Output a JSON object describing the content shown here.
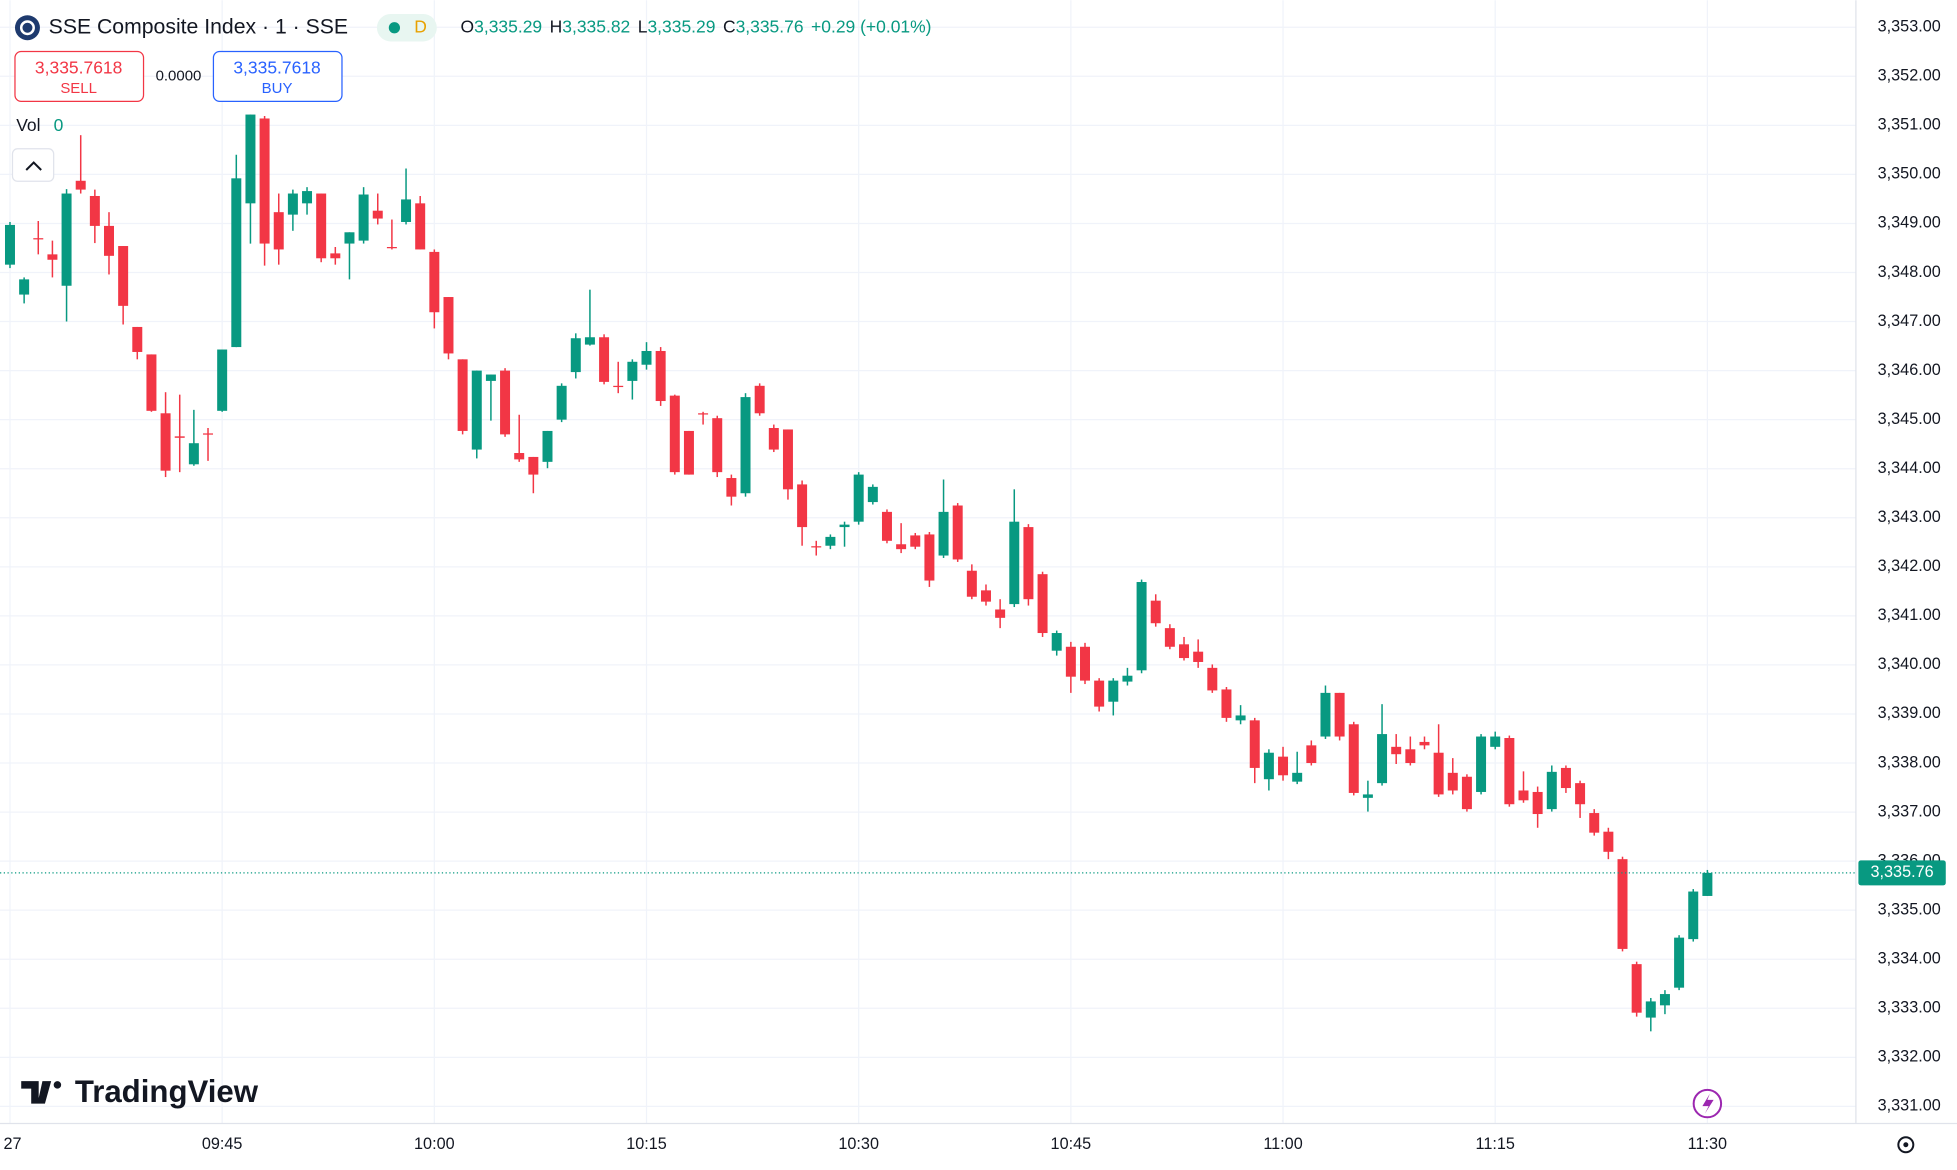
{
  "header": {
    "symbol": "SSE Composite Index · 1 · SSE",
    "badge": "D",
    "ohlc": [
      {
        "label": "O",
        "value": "3,335.29"
      },
      {
        "label": "H",
        "value": "3,335.82"
      },
      {
        "label": "L",
        "value": "3,335.29"
      },
      {
        "label": "C",
        "value": "3,335.76"
      }
    ],
    "change": "+0.29 (+0.01%)"
  },
  "trade": {
    "sell_price": "3,335.7618",
    "sell_label": "SELL",
    "spread": "0.0000",
    "buy_price": "3,335.7618",
    "buy_label": "BUY"
  },
  "volume": {
    "label": "Vol",
    "value": "0"
  },
  "brand": "TradingView",
  "chart_data": {
    "type": "candlestick",
    "up_color": "#089981",
    "down_color": "#f23645",
    "grid": true,
    "categories": [
      "27",
      null,
      null,
      null,
      null,
      null,
      null,
      null,
      null,
      null,
      null,
      null,
      null,
      null,
      null,
      "09:45",
      null,
      null,
      null,
      null,
      null,
      null,
      null,
      null,
      null,
      null,
      null,
      null,
      null,
      null,
      "10:00",
      null,
      null,
      null,
      null,
      null,
      null,
      null,
      null,
      null,
      null,
      null,
      null,
      null,
      null,
      "10:15",
      null,
      null,
      null,
      null,
      null,
      null,
      null,
      null,
      null,
      null,
      null,
      null,
      null,
      null,
      "10:30",
      null,
      null,
      null,
      null,
      null,
      null,
      null,
      null,
      null,
      null,
      null,
      null,
      null,
      null,
      "10:45",
      null,
      null,
      null,
      null,
      null,
      null,
      null,
      null,
      null,
      null,
      null,
      null,
      null,
      null,
      "11:00",
      null,
      null,
      null,
      null,
      null,
      null,
      null,
      null,
      null,
      null,
      null,
      null,
      null,
      null,
      "11:15",
      null,
      null,
      null,
      null,
      null,
      null,
      null,
      null,
      null,
      null,
      null,
      null,
      null,
      null,
      "11:30"
    ],
    "open": [
      3348.16,
      3347.55,
      3348.7,
      3348.37,
      3347.73,
      3349.87,
      3349.56,
      3348.95,
      3348.54,
      3346.89,
      3346.33,
      3345.13,
      3344.66,
      3344.09,
      3344.72,
      3345.18,
      3346.48,
      3349.41,
      3351.14,
      3349.23,
      3349.18,
      3349.41,
      3349.61,
      3348.39,
      3348.59,
      3348.65,
      3349.26,
      3348.52,
      3349.03,
      3349.41,
      3348.42,
      3347.5,
      3346.23,
      3344.39,
      3345.79,
      3346.0,
      3344.32,
      3344.24,
      3344.14,
      3345.0,
      3345.97,
      3346.53,
      3346.68,
      3345.69,
      3345.79,
      3346.12,
      3346.4,
      3345.49,
      3344.77,
      3345.13,
      3345.03,
      3343.81,
      3343.5,
      3345.69,
      3344.83,
      3344.8,
      3343.68,
      3342.42,
      3342.43,
      3342.81,
      3342.92,
      3343.32,
      3343.12,
      3342.46,
      3342.64,
      3342.66,
      3342.23,
      3343.25,
      3341.92,
      3341.52,
      3341.13,
      3341.24,
      3342.81,
      3341.85,
      3340.29,
      3340.37,
      3340.37,
      3339.68,
      3339.25,
      3339.66,
      3339.89,
      3341.31,
      3340.75,
      3340.42,
      3340.27,
      3339.94,
      3339.5,
      3338.87,
      3338.87,
      3337.67,
      3338.13,
      3337.62,
      3338.36,
      3338.54,
      3339.43,
      3338.79,
      3337.29,
      3337.59,
      3338.33,
      3338.28,
      3338.43,
      3338.21,
      3337.8,
      3337.72,
      3337.41,
      3338.33,
      3338.51,
      3337.44,
      3337.41,
      3337.06,
      3337.9,
      3337.59,
      3336.98,
      3336.6,
      3336.04,
      3333.9,
      3332.81,
      3333.06,
      3333.42,
      3334.41,
      3335.29
    ],
    "high": [
      3349.03,
      3347.9,
      3349.05,
      3348.65,
      3349.7,
      3350.8,
      3349.69,
      3349.23,
      3348.54,
      3346.89,
      3346.33,
      3345.56,
      3345.51,
      3345.2,
      3344.83,
      3346.43,
      3350.4,
      3351.22,
      3351.19,
      3349.61,
      3349.69,
      3349.74,
      3349.61,
      3348.52,
      3348.82,
      3349.74,
      3349.61,
      3349.08,
      3350.12,
      3349.56,
      3348.47,
      3347.5,
      3346.23,
      3346.0,
      3345.92,
      3346.05,
      3345.1,
      3344.24,
      3344.77,
      3345.74,
      3346.76,
      3347.65,
      3346.74,
      3346.18,
      3346.23,
      3346.58,
      3346.48,
      3345.51,
      3344.77,
      3345.16,
      3345.08,
      3343.88,
      3345.54,
      3345.74,
      3344.9,
      3344.8,
      3343.76,
      3342.53,
      3342.66,
      3342.92,
      3343.93,
      3343.68,
      3343.17,
      3342.89,
      3342.69,
      3342.71,
      3343.78,
      3343.3,
      3342.05,
      3341.64,
      3341.34,
      3343.58,
      3342.87,
      3341.9,
      3340.7,
      3340.47,
      3340.45,
      3339.73,
      3339.73,
      3339.94,
      3341.74,
      3341.44,
      3340.83,
      3340.57,
      3340.52,
      3340.01,
      3339.55,
      3339.18,
      3338.92,
      3338.28,
      3338.33,
      3338.23,
      3338.46,
      3339.58,
      3339.43,
      3338.84,
      3337.64,
      3339.2,
      3338.59,
      3338.54,
      3338.54,
      3338.79,
      3338.1,
      3337.77,
      3338.59,
      3338.64,
      3338.56,
      3337.83,
      3337.52,
      3337.95,
      3337.95,
      3337.64,
      3337.06,
      3336.68,
      3336.09,
      3333.95,
      3333.21,
      3333.37,
      3334.49,
      3335.43,
      3335.82
    ],
    "low": [
      3348.09,
      3347.37,
      3348.37,
      3347.9,
      3347.0,
      3349.61,
      3348.6,
      3347.96,
      3346.94,
      3346.23,
      3345.16,
      3343.83,
      3343.93,
      3344.06,
      3344.16,
      3345.16,
      3346.48,
      3348.59,
      3348.14,
      3348.16,
      3348.85,
      3349.18,
      3348.21,
      3348.16,
      3347.86,
      3348.59,
      3348.98,
      3348.47,
      3348.98,
      3348.47,
      3346.86,
      3346.23,
      3344.7,
      3344.21,
      3344.98,
      3344.65,
      3344.14,
      3343.5,
      3344.01,
      3344.95,
      3345.84,
      3346.51,
      3345.72,
      3345.54,
      3345.41,
      3346.02,
      3345.28,
      3343.88,
      3343.88,
      3344.9,
      3343.83,
      3343.25,
      3343.43,
      3345.08,
      3344.34,
      3343.37,
      3342.43,
      3342.23,
      3342.36,
      3342.41,
      3342.86,
      3343.27,
      3342.48,
      3342.28,
      3342.36,
      3341.59,
      3342.18,
      3342.1,
      3341.34,
      3341.21,
      3340.75,
      3341.18,
      3341.21,
      3340.57,
      3340.19,
      3339.43,
      3339.61,
      3339.05,
      3338.97,
      3339.58,
      3339.83,
      3340.78,
      3340.32,
      3340.09,
      3339.94,
      3339.43,
      3338.84,
      3338.79,
      3337.59,
      3337.44,
      3337.64,
      3337.57,
      3337.95,
      3338.49,
      3338.46,
      3337.34,
      3337.01,
      3337.54,
      3337.98,
      3337.95,
      3338.28,
      3337.31,
      3337.36,
      3337.01,
      3337.36,
      3338.28,
      3337.11,
      3337.19,
      3336.68,
      3337.01,
      3337.39,
      3336.88,
      3336.52,
      3336.04,
      3334.16,
      3332.83,
      3332.53,
      3332.88,
      3333.37,
      3334.36,
      3335.29
    ],
    "close": [
      3348.97,
      3347.86,
      3348.68,
      3348.26,
      3349.61,
      3349.69,
      3348.95,
      3348.34,
      3347.32,
      3346.38,
      3345.18,
      3343.96,
      3344.63,
      3344.52,
      3344.7,
      3346.43,
      3349.92,
      3351.22,
      3348.59,
      3348.47,
      3349.61,
      3349.66,
      3348.29,
      3348.29,
      3348.82,
      3349.59,
      3349.1,
      3348.5,
      3349.49,
      3348.47,
      3347.19,
      3346.35,
      3344.77,
      3346.0,
      3345.92,
      3344.7,
      3344.19,
      3343.88,
      3344.77,
      3345.69,
      3346.66,
      3346.68,
      3345.77,
      3345.67,
      3346.18,
      3346.4,
      3345.38,
      3343.93,
      3343.88,
      3345.11,
      3343.93,
      3343.43,
      3345.46,
      3345.13,
      3344.39,
      3343.58,
      3342.81,
      3342.4,
      3342.61,
      3342.86,
      3343.88,
      3343.63,
      3342.53,
      3342.36,
      3342.41,
      3341.72,
      3343.12,
      3342.15,
      3341.39,
      3341.29,
      3340.96,
      3342.92,
      3341.34,
      3340.65,
      3340.65,
      3339.76,
      3339.68,
      3339.15,
      3339.68,
      3339.78,
      3341.69,
      3340.85,
      3340.37,
      3340.14,
      3340.06,
      3339.48,
      3338.92,
      3338.97,
      3337.9,
      3338.21,
      3337.75,
      3337.8,
      3338.0,
      3339.43,
      3338.54,
      3337.39,
      3337.36,
      3338.59,
      3338.18,
      3338.0,
      3338.36,
      3337.36,
      3337.44,
      3337.06,
      3338.54,
      3338.54,
      3337.16,
      3337.24,
      3336.96,
      3337.82,
      3337.49,
      3337.16,
      3336.58,
      3336.19,
      3334.21,
      3332.91,
      3333.14,
      3333.29,
      3334.44,
      3335.38,
      3335.76
    ],
    "ylim": [
      3330.65,
      3353.55
    ],
    "yticks": [
      {
        "value": 3331,
        "label": "3,331.00"
      },
      {
        "value": 3332,
        "label": "3,332.00"
      },
      {
        "value": 3333,
        "label": "3,333.00"
      },
      {
        "value": 3334,
        "label": "3,334.00"
      },
      {
        "value": 3335,
        "label": "3,335.00"
      },
      {
        "value": 3336,
        "label": "3,336.00"
      },
      {
        "value": 3337,
        "label": "3,337.00"
      },
      {
        "value": 3338,
        "label": "3,338.00"
      },
      {
        "value": 3339,
        "label": "3,339.00"
      },
      {
        "value": 3340,
        "label": "3,340.00"
      },
      {
        "value": 3341,
        "label": "3,341.00"
      },
      {
        "value": 3342,
        "label": "3,342.00"
      },
      {
        "value": 3343,
        "label": "3,343.00"
      },
      {
        "value": 3344,
        "label": "3,344.00"
      },
      {
        "value": 3345,
        "label": "3,345.00"
      },
      {
        "value": 3346,
        "label": "3,346.00"
      },
      {
        "value": 3347,
        "label": "3,347.00"
      },
      {
        "value": 3348,
        "label": "3,348.00"
      },
      {
        "value": 3349,
        "label": "3,349.00"
      },
      {
        "value": 3350,
        "label": "3,350.00"
      },
      {
        "value": 3351,
        "label": "3,351.00"
      },
      {
        "value": 3352,
        "label": "3,352.00"
      },
      {
        "value": 3353,
        "label": "3,353.00"
      }
    ],
    "last_price": {
      "value": 3335.76,
      "label": "3,335.76"
    }
  }
}
